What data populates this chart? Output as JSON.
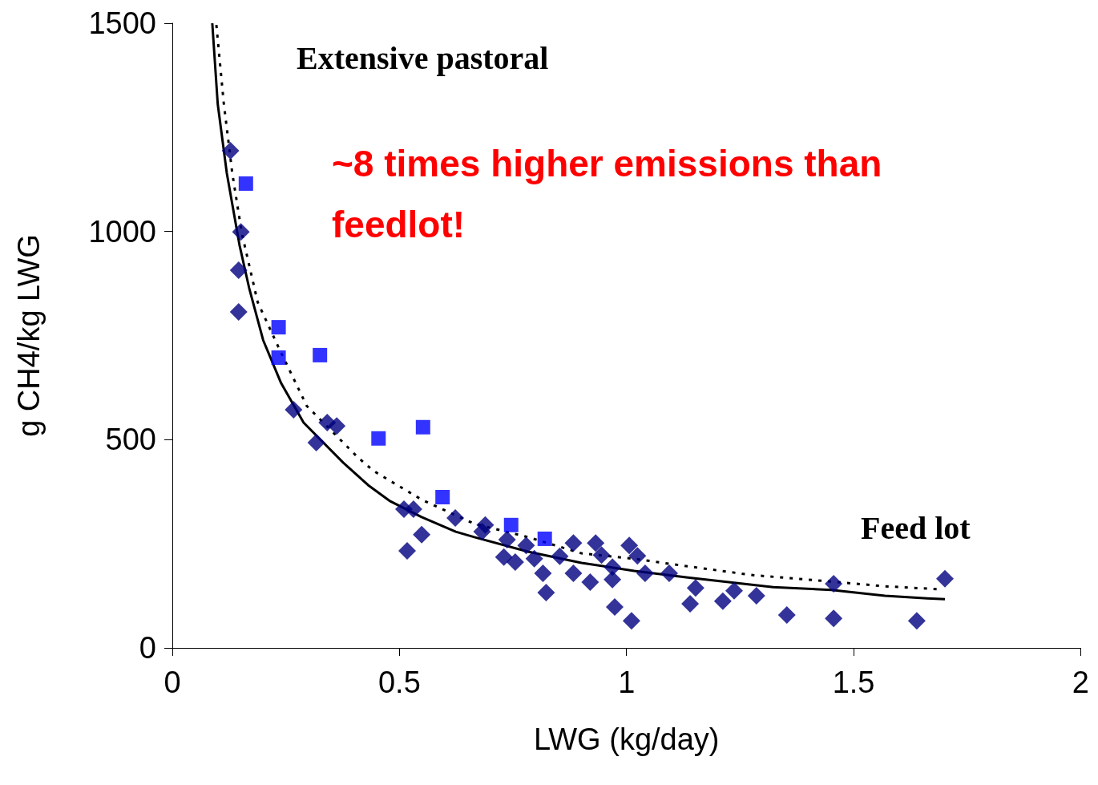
{
  "chart_data": {
    "type": "scatter",
    "xlabel": "LWG (kg/day)",
    "ylabel": "g CH4/kg LWG",
    "annotations": [
      "Extensive pastoral",
      "~8 times higher emissions than feedlot!",
      "Feed lot"
    ],
    "xlim": [
      0,
      2
    ],
    "xticks": [
      0,
      0.5,
      1,
      1.5,
      2
    ],
    "ylim": [
      0,
      1500
    ],
    "yticks": [
      0,
      500,
      1000,
      1500
    ],
    "grid": false,
    "series": [
      {
        "type": "scatter",
        "marker": "diamond",
        "color": "#000080",
        "x": [
          0.128,
          0.151,
          0.146,
          0.146,
          0.267,
          0.317,
          0.341,
          0.362,
          0.51,
          0.531,
          0.517,
          0.549,
          0.623,
          0.689,
          0.682,
          0.737,
          0.73,
          0.755,
          0.779,
          0.797,
          0.816,
          0.823,
          0.853,
          0.883,
          0.883,
          0.92,
          0.932,
          0.945,
          0.969,
          0.969,
          0.974,
          1.011,
          1.006,
          1.024,
          1.041,
          1.094,
          1.152,
          1.14,
          1.212,
          1.237,
          1.286,
          1.353,
          1.456,
          1.456,
          1.639,
          1.701
        ],
        "values": [
          1194,
          999,
          907,
          807,
          572,
          493,
          541,
          533,
          333,
          333,
          233,
          272,
          312,
          295,
          279,
          260,
          218,
          206,
          246,
          214,
          179,
          133,
          220,
          252,
          179,
          158,
          252,
          223,
          194,
          164,
          98,
          65,
          246,
          221,
          179,
          179,
          144,
          106,
          112,
          137,
          125,
          79,
          154,
          71,
          65,
          166
        ]
      },
      {
        "type": "scatter",
        "marker": "square",
        "color": "#0000ff",
        "x": [
          0.162,
          0.234,
          0.234,
          0.325,
          0.454,
          0.552,
          0.595,
          0.746,
          0.82
        ],
        "values": [
          1115,
          770,
          697,
          703,
          503,
          530,
          362,
          295,
          262
        ]
      },
      {
        "type": "line",
        "marker": "none",
        "line_style": "solid",
        "color": "#000000",
        "x": [
          0.088,
          0.1,
          0.12,
          0.148,
          0.169,
          0.2,
          0.239,
          0.289,
          0.376,
          0.431,
          0.48,
          0.549,
          0.624,
          0.665,
          0.783,
          0.901,
          1.017,
          1.135,
          1.323,
          1.451,
          1.569,
          1.662,
          1.701
        ],
        "values": [
          1500,
          1306,
          1140,
          967,
          865,
          739,
          637,
          541,
          445,
          391,
          352,
          314,
          279,
          266,
          231,
          204,
          185,
          169,
          146,
          139,
          125,
          119,
          117
        ]
      },
      {
        "type": "line",
        "marker": "none",
        "line_style": "dotted",
        "color": "#000000",
        "x": [
          0.097,
          0.113,
          0.132,
          0.153,
          0.188,
          0.232,
          0.296,
          0.408,
          0.443,
          0.549,
          0.665,
          0.783,
          0.901,
          1.017,
          1.094,
          1.275,
          1.421,
          1.569,
          1.685
        ],
        "values": [
          1496,
          1311,
          1140,
          996,
          830,
          726,
          581,
          458,
          425,
          356,
          298,
          266,
          227,
          214,
          202,
          175,
          162,
          148,
          141
        ]
      }
    ]
  }
}
